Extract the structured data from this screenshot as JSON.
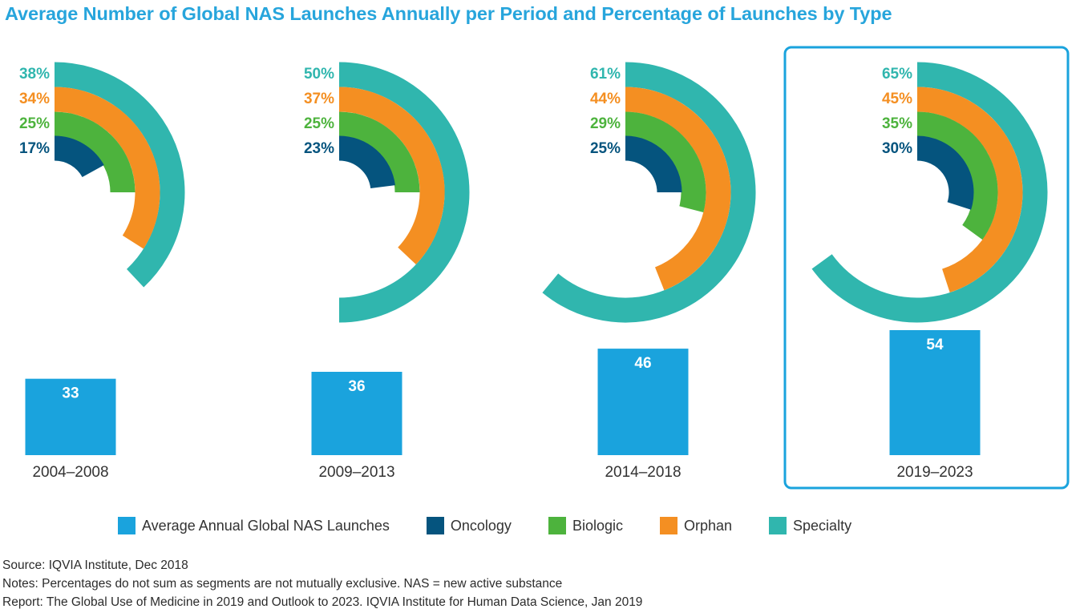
{
  "title": "Average Number of Global NAS Launches Annually per Period and Percentage of Launches by Type",
  "colors": {
    "bar": "#1aa3dd",
    "oncology": "#05547e",
    "biologic": "#4db33d",
    "orphan": "#f48f22",
    "specialty": "#30b6ae",
    "highlight_border": "#1aa3dd"
  },
  "chart_data": {
    "type": "radial-bar + bar",
    "title": "Average Number of Global NAS Launches Annually per Period and Percentage of Launches by Type",
    "categories": [
      "2004–2008",
      "2009–2013",
      "2014–2018",
      "2019–2023"
    ],
    "highlighted_category": "2019–2023",
    "bar_series": {
      "name": "Average Annual Global NAS Launches",
      "values": [
        33,
        36,
        46,
        54
      ],
      "labels": [
        "33",
        "36",
        "46",
        "54"
      ],
      "ylim": [
        0,
        60
      ]
    },
    "radial_series": [
      {
        "key": "specialty",
        "name": "Specialty",
        "values": [
          38,
          50,
          61,
          65
        ],
        "labels": [
          "38%",
          "50%",
          "61%",
          "65%"
        ]
      },
      {
        "key": "orphan",
        "name": "Orphan",
        "values": [
          34,
          37,
          44,
          45
        ],
        "labels": [
          "34%",
          "37%",
          "44%",
          "45%"
        ]
      },
      {
        "key": "biologic",
        "name": "Biologic",
        "values": [
          25,
          25,
          29,
          35
        ],
        "labels": [
          "25%",
          "25%",
          "29%",
          "35%"
        ]
      },
      {
        "key": "oncology",
        "name": "Oncology",
        "values": [
          17,
          23,
          25,
          30
        ],
        "labels": [
          "17%",
          "23%",
          "25%",
          "30%"
        ]
      }
    ]
  },
  "legend": [
    {
      "label": "Average Annual Global NAS Launches",
      "color_key": "bar"
    },
    {
      "label": "Oncology",
      "color_key": "oncology"
    },
    {
      "label": "Biologic",
      "color_key": "biologic"
    },
    {
      "label": "Orphan",
      "color_key": "orphan"
    },
    {
      "label": "Specialty",
      "color_key": "specialty"
    }
  ],
  "footnotes": {
    "source": "Source: IQVIA Institute, Dec 2018",
    "notes": "Notes: Percentages do not sum as segments are not mutually exclusive. NAS = new active substance",
    "report": "Report: The Global Use of Medicine in 2019 and Outlook to 2023. IQVIA Institute for Human Data Science, Jan 2019"
  }
}
